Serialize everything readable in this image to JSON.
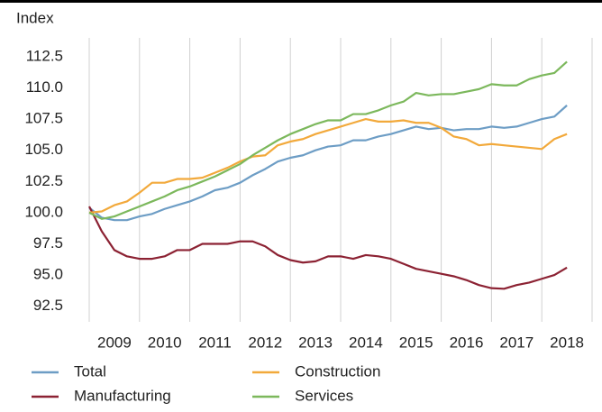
{
  "chart_data": {
    "type": "line",
    "y_axis_label": "Index",
    "x": [
      2009,
      2009.25,
      2009.5,
      2009.75,
      2010,
      2010.25,
      2010.5,
      2010.75,
      2011,
      2011.25,
      2011.5,
      2011.75,
      2012,
      2012.25,
      2012.5,
      2012.75,
      2013,
      2013.25,
      2013.5,
      2013.75,
      2014,
      2014.25,
      2014.5,
      2014.75,
      2015,
      2015.25,
      2015.5,
      2015.75,
      2016,
      2016.25,
      2016.5,
      2016.75,
      2017,
      2017.25,
      2017.5,
      2017.75,
      2018,
      2018.25,
      2018.5
    ],
    "categories": [
      "2009",
      "2010",
      "2011",
      "2012",
      "2013",
      "2014",
      "2015",
      "2016",
      "2017",
      "2018"
    ],
    "xlim": [
      2009,
      2019
    ],
    "ylim": [
      91.25,
      113.75
    ],
    "yticks": [
      {
        "value": 92.5,
        "label": "92.5"
      },
      {
        "value": 95,
        "label": "95.0"
      },
      {
        "value": 97.5,
        "label": "97.5"
      },
      {
        "value": 100,
        "label": "100.0"
      },
      {
        "value": 102.5,
        "label": "102.5"
      },
      {
        "value": 105,
        "label": "105.0"
      },
      {
        "value": 107.5,
        "label": "107.5"
      },
      {
        "value": 110,
        "label": "110.0"
      },
      {
        "value": 112.5,
        "label": "112.5"
      }
    ],
    "series": [
      {
        "name": "Total",
        "color": "#6d9dc5",
        "values": [
          100.4,
          99.6,
          99.4,
          99.4,
          99.7,
          99.9,
          100.3,
          100.6,
          100.9,
          101.3,
          101.8,
          102.0,
          102.4,
          103.0,
          103.5,
          104.1,
          104.4,
          104.6,
          105.0,
          105.3,
          105.4,
          105.8,
          105.8,
          106.1,
          106.3,
          106.6,
          106.9,
          106.7,
          106.8,
          106.6,
          106.7,
          106.7,
          106.9,
          106.8,
          106.9,
          107.2,
          107.5,
          107.7,
          108.6
        ]
      },
      {
        "name": "Manufacturing",
        "color": "#8c2233",
        "values": [
          100.5,
          98.5,
          97.0,
          96.5,
          96.3,
          96.3,
          96.5,
          97.0,
          97.0,
          97.5,
          97.5,
          97.5,
          97.7,
          97.7,
          97.3,
          96.6,
          96.2,
          96.0,
          96.1,
          96.5,
          96.5,
          96.3,
          96.6,
          96.5,
          96.3,
          95.9,
          95.5,
          95.3,
          95.1,
          94.9,
          94.6,
          94.2,
          93.95,
          93.9,
          94.2,
          94.4,
          94.7,
          95.0,
          95.6
        ]
      },
      {
        "name": "Construction",
        "color": "#f2a93b",
        "values": [
          100.0,
          100.1,
          100.6,
          100.9,
          101.6,
          102.4,
          102.4,
          102.7,
          102.7,
          102.8,
          103.2,
          103.6,
          104.1,
          104.5,
          104.6,
          105.4,
          105.7,
          105.9,
          106.3,
          106.6,
          106.9,
          107.2,
          107.5,
          107.3,
          107.3,
          107.4,
          107.2,
          107.2,
          106.8,
          106.1,
          105.9,
          105.4,
          105.5,
          105.4,
          105.3,
          105.2,
          105.1,
          105.9,
          106.3
        ]
      },
      {
        "name": "Services",
        "color": "#7cb85c",
        "values": [
          100.0,
          99.5,
          99.7,
          100.1,
          100.5,
          100.9,
          101.3,
          101.8,
          102.1,
          102.5,
          102.9,
          103.4,
          103.9,
          104.6,
          105.2,
          105.8,
          106.3,
          106.7,
          107.1,
          107.4,
          107.4,
          107.9,
          107.9,
          108.2,
          108.6,
          108.9,
          109.6,
          109.4,
          109.5,
          109.5,
          109.7,
          109.9,
          110.3,
          110.2,
          110.2,
          110.7,
          111.0,
          111.2,
          112.1
        ]
      }
    ]
  }
}
